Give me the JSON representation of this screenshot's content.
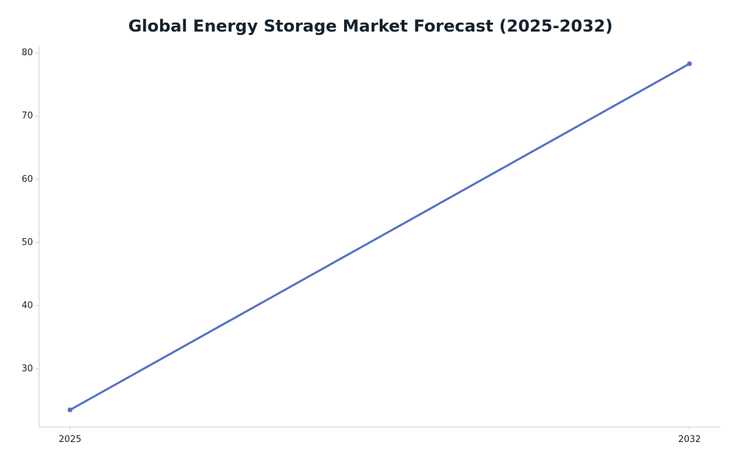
{
  "chart_data": {
    "type": "line",
    "title": "Global Energy Storage Market Forecast (2025-2032)",
    "xlabel": "",
    "ylabel": "",
    "x": [
      "2025",
      "2032"
    ],
    "series": [
      {
        "values": [
          23.5,
          78.3
        ]
      }
    ],
    "ylim": [
      20.8,
      81.0
    ],
    "yticks": [
      "30",
      "40",
      "50",
      "60",
      "70",
      "80"
    ],
    "grid": false,
    "legend": "none",
    "colors": {
      "line": "#5470c6",
      "axis": "#cccccc",
      "text": "#14222e"
    }
  }
}
